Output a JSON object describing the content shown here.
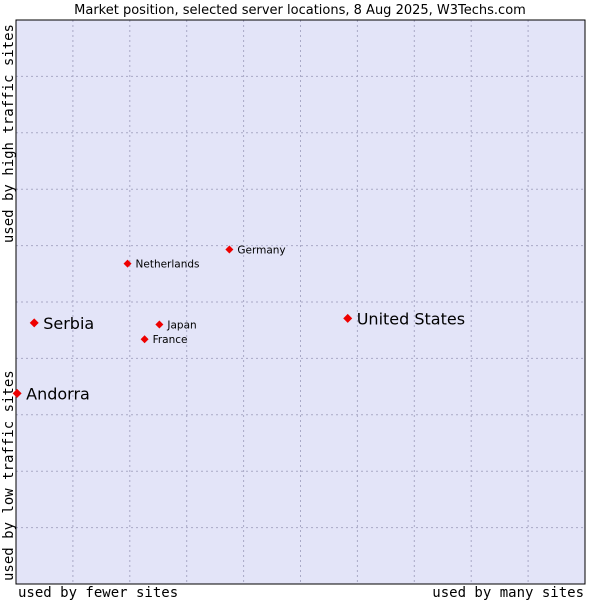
{
  "chart_data": {
    "type": "scatter",
    "title": "Market position, selected server locations, 8 Aug 2025, W3Techs.com",
    "xlabel_left": "used by fewer sites",
    "xlabel_right": "used by many sites",
    "ylabel_bottom": "used by low traffic sites",
    "ylabel_top": "used by high traffic sites",
    "xlim": [
      0,
      100
    ],
    "ylim": [
      0,
      100
    ],
    "grid": true,
    "colors": {
      "plot_background": "#e3e4f8",
      "grid": "#a9a9c6",
      "border": "#000000",
      "marker": "#ee0000"
    },
    "points": [
      {
        "name": "United States",
        "x": 58.3,
        "y": 47.1,
        "emphasis": true
      },
      {
        "name": "Germany",
        "x": 37.5,
        "y": 59.3,
        "emphasis": false
      },
      {
        "name": "Netherlands",
        "x": 19.6,
        "y": 56.8,
        "emphasis": false
      },
      {
        "name": "Serbia",
        "x": 3.2,
        "y": 46.3,
        "emphasis": true
      },
      {
        "name": "Japan",
        "x": 25.2,
        "y": 46.0,
        "emphasis": false
      },
      {
        "name": "France",
        "x": 22.6,
        "y": 43.4,
        "emphasis": false
      },
      {
        "name": "Andorra",
        "x": 0.2,
        "y": 33.8,
        "emphasis": true
      }
    ]
  }
}
